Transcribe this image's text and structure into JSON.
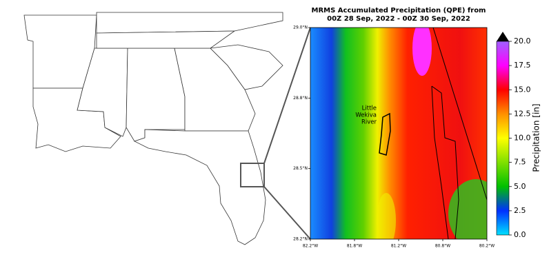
{
  "figure": {
    "title": [
      "MRMS Accumulated Precipitation (QPE) from",
      "00Z 28 Sep, 2022 - 00Z 30 Sep, 2022"
    ],
    "annotation": [
      "Little",
      "Wekiva",
      "River"
    ],
    "lat_range": [
      28.25,
      29.0
    ],
    "lat_ticks": [
      {
        "value": 29.0,
        "label": "29.0°N"
      },
      {
        "value": 28.75,
        "label": "28.8°N"
      },
      {
        "value": 28.5,
        "label": "28.5°N"
      },
      {
        "value": 28.25,
        "label": "28.2°N"
      }
    ],
    "lon_range": [
      -82.25,
      -80.25
    ],
    "lon_ticks": [
      {
        "value": -82.25,
        "label": "82.2°W"
      },
      {
        "value": -81.75,
        "label": "81.8°W"
      },
      {
        "value": -81.25,
        "label": "81.2°W"
      },
      {
        "value": -80.75,
        "label": "80.8°W"
      },
      {
        "value": -80.25,
        "label": "80.2°W"
      }
    ],
    "colorbar": {
      "label": "Precipitation [in]",
      "range": [
        0,
        20
      ],
      "ticks": [
        {
          "value": 0,
          "label": "0.0"
        },
        {
          "value": 2.5,
          "label": "2.5"
        },
        {
          "value": 5,
          "label": "5.0"
        },
        {
          "value": 7.5,
          "label": "7.5"
        },
        {
          "value": 10,
          "label": "10.0"
        },
        {
          "value": 12.5,
          "label": "12.5"
        },
        {
          "value": 15,
          "label": "15.0"
        },
        {
          "value": 17.5,
          "label": "17.5"
        },
        {
          "value": 20,
          "label": "20.0"
        }
      ]
    }
  }
}
